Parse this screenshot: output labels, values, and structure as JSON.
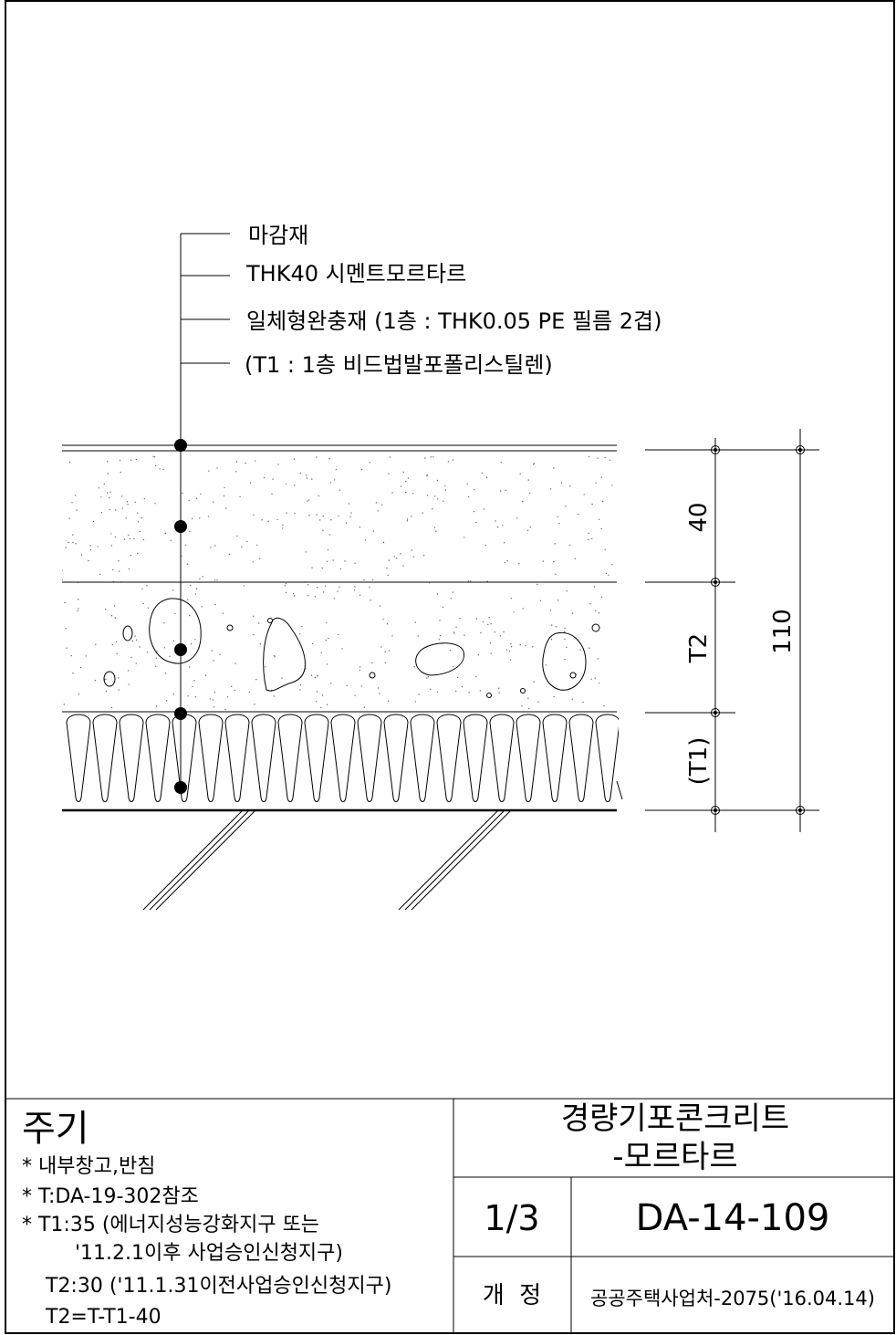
{
  "callouts": [
    "마감재",
    "THK40 시멘트모르타르",
    "일체형완충재 (1층 : THK0.05 PE 필름 2겹)",
    "(T1 : 1층 비드법발포폴리스틸렌)"
  ],
  "dimensions": {
    "mortar": "40",
    "concrete": "T2",
    "insulation": "(T1)",
    "total": "110"
  },
  "notes": {
    "heading": "주기",
    "lines": [
      "* 내부창고,반침",
      "* T:DA-19-302참조",
      "* T1:35 (에너지성능강화지구 또는",
      "'11.2.1이후 사업승인신청지구)",
      "T2:30 ('11.1.31이전사업승인신청지구)",
      "T2=T-T1-40"
    ]
  },
  "title": {
    "line1": "경량기포콘크리트",
    "line2": "-모르타르"
  },
  "sheet": {
    "scale": "1/3",
    "number": "DA-14-109",
    "revision_label": "개  정",
    "revision": "공공주택사업처-2075('16.04.14)"
  }
}
